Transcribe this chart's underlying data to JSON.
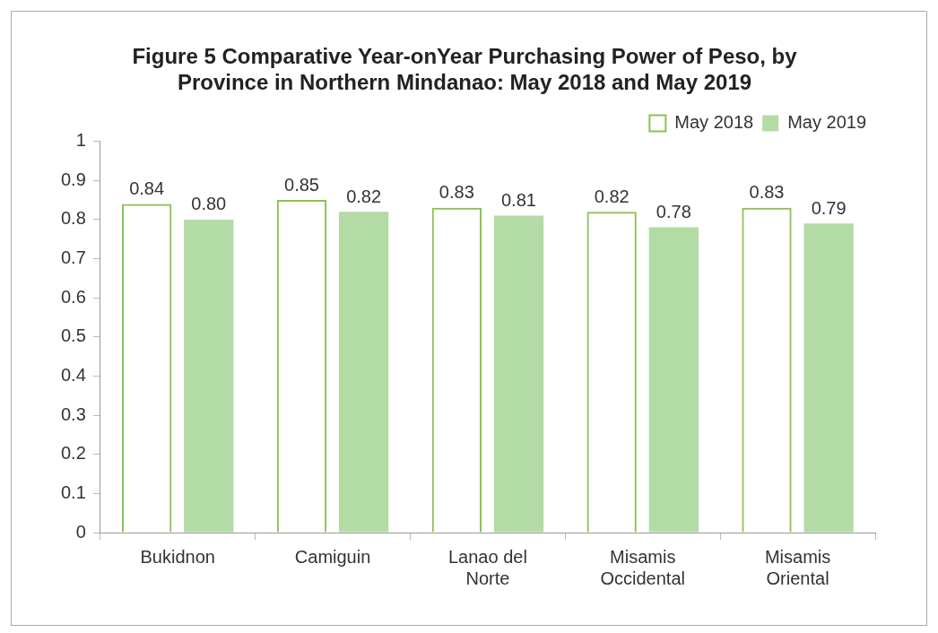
{
  "chart_data": {
    "type": "bar",
    "title": [
      "Figure 5 Comparative Year-onYear Purchasing Power of Peso, by",
      "Province in Northern Mindanao: May 2018 and May 2019"
    ],
    "categories": [
      "Bukidnon",
      "Camiguin",
      "Lanao del Norte",
      "Misamis Occidental",
      "Misamis Oriental"
    ],
    "series": [
      {
        "name": "May 2018",
        "color": "#8cc152",
        "values": [
          0.84,
          0.85,
          0.83,
          0.82,
          0.83
        ],
        "value_labels": [
          "0.84",
          "0.85",
          "0.83",
          "0.82",
          "0.83"
        ]
      },
      {
        "name": "May 2019",
        "color": "#b3dba5",
        "values": [
          0.8,
          0.82,
          0.81,
          0.78,
          0.79
        ],
        "value_labels": [
          "0.80",
          "0.82",
          "0.81",
          "0.78",
          "0.79"
        ]
      }
    ],
    "ylim": [
      0,
      1
    ],
    "yticks": [
      0,
      0.1,
      0.2,
      0.3,
      0.4,
      0.5,
      0.6,
      0.7,
      0.8,
      0.9,
      1
    ],
    "grid": false,
    "legend": "top right"
  }
}
